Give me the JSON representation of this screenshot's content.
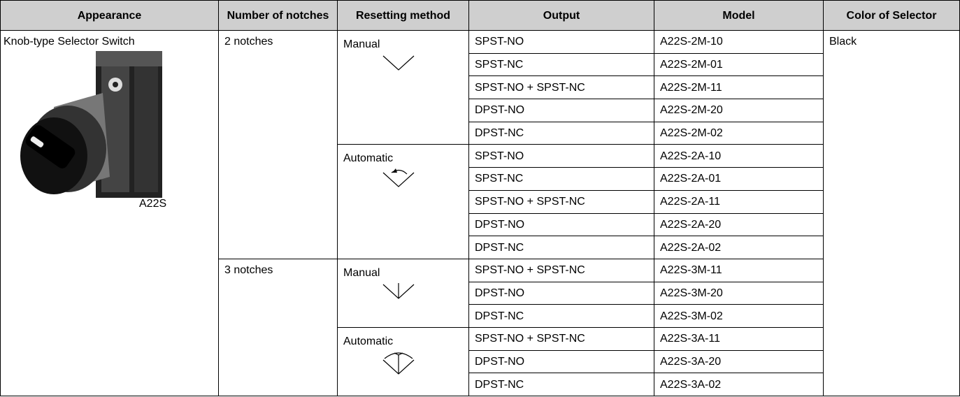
{
  "table": {
    "headers": [
      "Appearance",
      "Number of notches",
      "Resetting method",
      "Output",
      "Model",
      "Color of Selector"
    ],
    "appearance": {
      "label": "Knob-type Selector Switch",
      "caption": "A22S"
    },
    "color": "Black",
    "groups": [
      {
        "label": "2 notches",
        "methods": [
          {
            "label": "Manual",
            "rows": [
              [
                "SPST-NO",
                "A22S-2M-10"
              ],
              [
                "SPST-NC",
                "A22S-2M-01"
              ],
              [
                "SPST-NO + SPST-NC",
                "A22S-2M-11"
              ],
              [
                "DPST-NO",
                "A22S-2M-20"
              ],
              [
                "DPST-NC",
                "A22S-2M-02"
              ]
            ]
          },
          {
            "label": "Automatic",
            "rows": [
              [
                "SPST-NO",
                "A22S-2A-10"
              ],
              [
                "SPST-NC",
                "A22S-2A-01"
              ],
              [
                "SPST-NO + SPST-NC",
                "A22S-2A-11"
              ],
              [
                "DPST-NO",
                "A22S-2A-20"
              ],
              [
                "DPST-NC",
                "A22S-2A-02"
              ]
            ]
          }
        ]
      },
      {
        "label": "3 notches",
        "methods": [
          {
            "label": "Manual",
            "rows": [
              [
                "SPST-NO + SPST-NC",
                "A22S-3M-11"
              ],
              [
                "DPST-NO",
                "A22S-3M-20"
              ],
              [
                "DPST-NC",
                "A22S-3M-02"
              ]
            ]
          },
          {
            "label": "Automatic",
            "rows": [
              [
                "SPST-NO + SPST-NC",
                "A22S-3A-11"
              ],
              [
                "DPST-NO",
                "A22S-3A-20"
              ],
              [
                "DPST-NC",
                "A22S-3A-02"
              ]
            ]
          }
        ]
      }
    ]
  }
}
